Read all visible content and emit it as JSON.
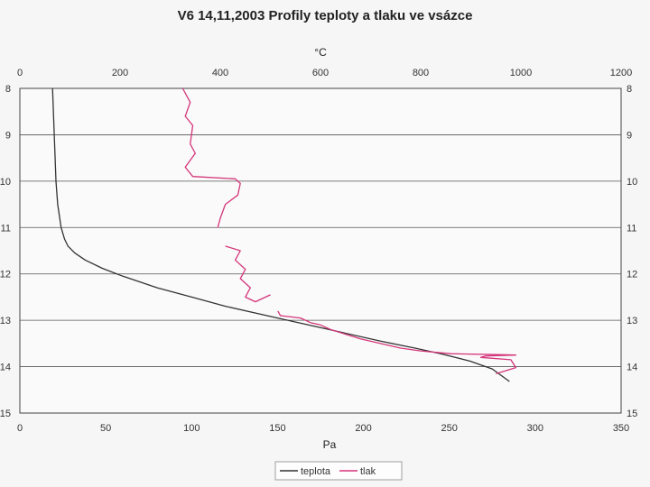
{
  "chart_data": {
    "type": "line",
    "title": "V6 14,11,2003  Profily teploty a tlaku ve vsázce",
    "top_axis": {
      "label": "°C",
      "range": [
        0,
        1200
      ],
      "ticks": [
        "0",
        "200",
        "400",
        "600",
        "800",
        "1000",
        "1200"
      ]
    },
    "bottom_axis": {
      "label": "Pa",
      "range": [
        0,
        350
      ],
      "ticks": [
        "0",
        "50",
        "100",
        "150",
        "200",
        "250",
        "300",
        "350"
      ]
    },
    "left_axis": {
      "range": [
        8,
        15
      ],
      "inverted": true,
      "ticks": [
        "8",
        "9",
        "10",
        "11",
        "12",
        "13",
        "14",
        "15"
      ]
    },
    "right_axis": {
      "range": [
        8,
        15
      ],
      "inverted": true,
      "ticks": [
        "8",
        "9",
        "10",
        "11",
        "12",
        "13",
        "14",
        "15"
      ]
    },
    "grid": true,
    "legend_position": "bottom",
    "series": [
      {
        "name": "teplota",
        "color": "#333333",
        "axis_x": "bottom",
        "points": [
          [
            19,
            8.0
          ],
          [
            20,
            9.0
          ],
          [
            21,
            10.0
          ],
          [
            22,
            10.5
          ],
          [
            24,
            11.0
          ],
          [
            26,
            11.25
          ],
          [
            28,
            11.4
          ],
          [
            32,
            11.55
          ],
          [
            38,
            11.7
          ],
          [
            48,
            11.88
          ],
          [
            60,
            12.05
          ],
          [
            80,
            12.3
          ],
          [
            100,
            12.5
          ],
          [
            120,
            12.7
          ],
          [
            150,
            12.95
          ],
          [
            180,
            13.2
          ],
          [
            210,
            13.45
          ],
          [
            230,
            13.6
          ],
          [
            245,
            13.72
          ],
          [
            262,
            13.88
          ],
          [
            275,
            14.05
          ],
          [
            285,
            14.32
          ]
        ]
      },
      {
        "name": "tlak",
        "color": "#d4357a",
        "axis_x": "top",
        "segments": [
          [
            [
              325,
              8.0
            ],
            [
              340,
              8.3
            ],
            [
              330,
              8.6
            ],
            [
              345,
              8.8
            ],
            [
              340,
              9.2
            ],
            [
              350,
              9.4
            ],
            [
              330,
              9.7
            ],
            [
              345,
              9.9
            ],
            [
              430,
              9.95
            ],
            [
              440,
              10.05
            ],
            [
              435,
              10.3
            ],
            [
              410,
              10.5
            ],
            [
              400,
              10.8
            ],
            [
              395,
              11.0
            ]
          ],
          [
            [
              410,
              11.4
            ],
            [
              440,
              11.5
            ],
            [
              430,
              11.7
            ],
            [
              450,
              11.9
            ],
            [
              440,
              12.1
            ],
            [
              460,
              12.3
            ],
            [
              450,
              12.5
            ],
            [
              470,
              12.6
            ],
            [
              500,
              12.45
            ]
          ],
          [
            [
              515,
              12.8
            ],
            [
              520,
              12.9
            ],
            [
              560,
              12.95
            ],
            [
              580,
              13.05
            ],
            [
              600,
              13.1
            ],
            [
              620,
              13.2
            ],
            [
              650,
              13.3
            ],
            [
              680,
              13.4
            ],
            [
              720,
              13.5
            ],
            [
              760,
              13.6
            ],
            [
              800,
              13.66
            ],
            [
              860,
              13.72
            ],
            [
              950,
              13.74
            ],
            [
              990,
              13.75
            ],
            [
              930,
              13.77
            ],
            [
              920,
              13.8
            ],
            [
              980,
              13.85
            ],
            [
              990,
              14.02
            ],
            [
              960,
              14.12
            ],
            [
              950,
              14.15
            ]
          ]
        ]
      }
    ]
  }
}
